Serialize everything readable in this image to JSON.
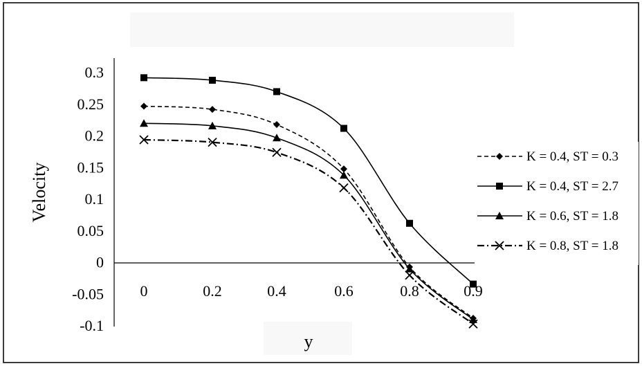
{
  "chart_data": {
    "type": "line",
    "title": "",
    "xlabel": "y",
    "ylabel": "Velocity",
    "x": [
      0,
      0.2,
      0.4,
      0.6,
      0.8,
      0.9
    ],
    "x_tick_labels": [
      "0",
      "0.2",
      "0.4",
      "0.6",
      "0.8",
      "0.9"
    ],
    "y_tick_labels": [
      "0.3",
      "0.25",
      "0.2",
      "0.15",
      "0.1",
      "0.05",
      "0",
      "-0.05",
      "-0.1"
    ],
    "ylim": [
      -0.1,
      0.3
    ],
    "grid": false,
    "legend_position": "right",
    "series": [
      {
        "name": "K = 0.4, ST = 0.3",
        "values": [
          0.247,
          0.242,
          0.218,
          0.148,
          -0.007,
          -0.088
        ],
        "marker": "diamond",
        "line_style": "dashed",
        "color": "#000000"
      },
      {
        "name": "K = 0.4, ST = 2.7",
        "values": [
          0.292,
          0.288,
          0.27,
          0.212,
          0.062,
          -0.034
        ],
        "marker": "square",
        "line_style": "solid",
        "color": "#000000"
      },
      {
        "name": "K = 0.6, ST = 1.8",
        "values": [
          0.22,
          0.216,
          0.197,
          0.138,
          -0.01,
          -0.09
        ],
        "marker": "triangle",
        "line_style": "solid",
        "color": "#000000"
      },
      {
        "name": "K = 0.8, ST = 1.8",
        "values": [
          0.194,
          0.19,
          0.174,
          0.118,
          -0.02,
          -0.097
        ],
        "marker": "x",
        "line_style": "dashdot",
        "color": "#000000"
      }
    ]
  }
}
